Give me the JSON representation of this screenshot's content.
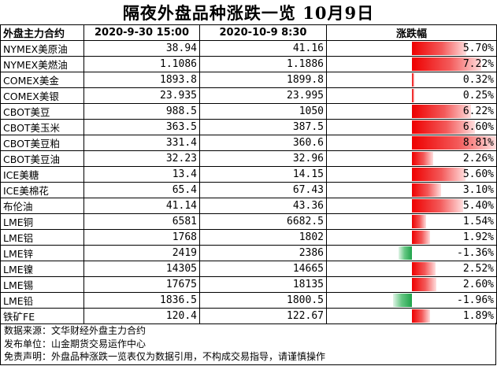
{
  "title": "隔夜外盘品种涨跌一览 10月9日",
  "headers": {
    "name": "外盘主力合约",
    "prev": "2020-9-30 15:00",
    "curr": "2020-10-9 8:30",
    "change": "涨跌幅"
  },
  "colors": {
    "up": "#ee0000",
    "down": "#1fa34a"
  },
  "chart_data": {
    "type": "table",
    "title": "隔夜外盘品种涨跌一览 10月9日",
    "columns": [
      "外盘主力合约",
      "2020-9-30 15:00",
      "2020-10-9 8:30",
      "涨跌幅"
    ],
    "change_bar_max": 8.81,
    "rows": [
      {
        "name": "NYMEX美原油",
        "prev": "38.94",
        "curr": "41.16",
        "change_text": "5.70%",
        "change": 5.7
      },
      {
        "name": "NYMEX美燃油",
        "prev": "1.1086",
        "curr": "1.1886",
        "change_text": "7.22%",
        "change": 7.22
      },
      {
        "name": "COMEX美金",
        "prev": "1893.8",
        "curr": "1899.8",
        "change_text": "0.32%",
        "change": 0.32
      },
      {
        "name": "COMEX美银",
        "prev": "23.935",
        "curr": "23.995",
        "change_text": "0.25%",
        "change": 0.25
      },
      {
        "name": "CBOT美豆",
        "prev": "988.5",
        "curr": "1050",
        "change_text": "6.22%",
        "change": 6.22
      },
      {
        "name": "CBOT美玉米",
        "prev": "363.5",
        "curr": "387.5",
        "change_text": "6.60%",
        "change": 6.6
      },
      {
        "name": "CBOT美豆粕",
        "prev": "331.4",
        "curr": "360.6",
        "change_text": "8.81%",
        "change": 8.81
      },
      {
        "name": "CBOT美豆油",
        "prev": "32.23",
        "curr": "32.96",
        "change_text": "2.26%",
        "change": 2.26
      },
      {
        "name": "ICE美糖",
        "prev": "13.4",
        "curr": "14.15",
        "change_text": "5.60%",
        "change": 5.6
      },
      {
        "name": "ICE美棉花",
        "prev": "65.4",
        "curr": "67.43",
        "change_text": "3.10%",
        "change": 3.1
      },
      {
        "name": "布伦油",
        "prev": "41.14",
        "curr": "43.36",
        "change_text": "5.40%",
        "change": 5.4
      },
      {
        "name": "LME铜",
        "prev": "6581",
        "curr": "6682.5",
        "change_text": "1.54%",
        "change": 1.54
      },
      {
        "name": "LME铝",
        "prev": "1768",
        "curr": "1802",
        "change_text": "1.92%",
        "change": 1.92
      },
      {
        "name": "LME锌",
        "prev": "2419",
        "curr": "2386",
        "change_text": "-1.36%",
        "change": -1.36
      },
      {
        "name": "LME镍",
        "prev": "14305",
        "curr": "14665",
        "change_text": "2.52%",
        "change": 2.52
      },
      {
        "name": "LME锡",
        "prev": "17675",
        "curr": "18135",
        "change_text": "2.60%",
        "change": 2.6
      },
      {
        "name": "LME铅",
        "prev": "1836.5",
        "curr": "1800.5",
        "change_text": "-1.96%",
        "change": -1.96
      },
      {
        "name": "铁矿FE",
        "prev": "120.4",
        "curr": "122.67",
        "change_text": "1.89%",
        "change": 1.89
      }
    ]
  },
  "footer": {
    "source": "数据来源：文华财经外盘主力合约",
    "publisher": "发布单位：山金期货交易运作中心",
    "disclaimer": "免责声明：外盘品种涨跌一览表仅为数据引用，不构成交易指导，请谨慎操作"
  }
}
